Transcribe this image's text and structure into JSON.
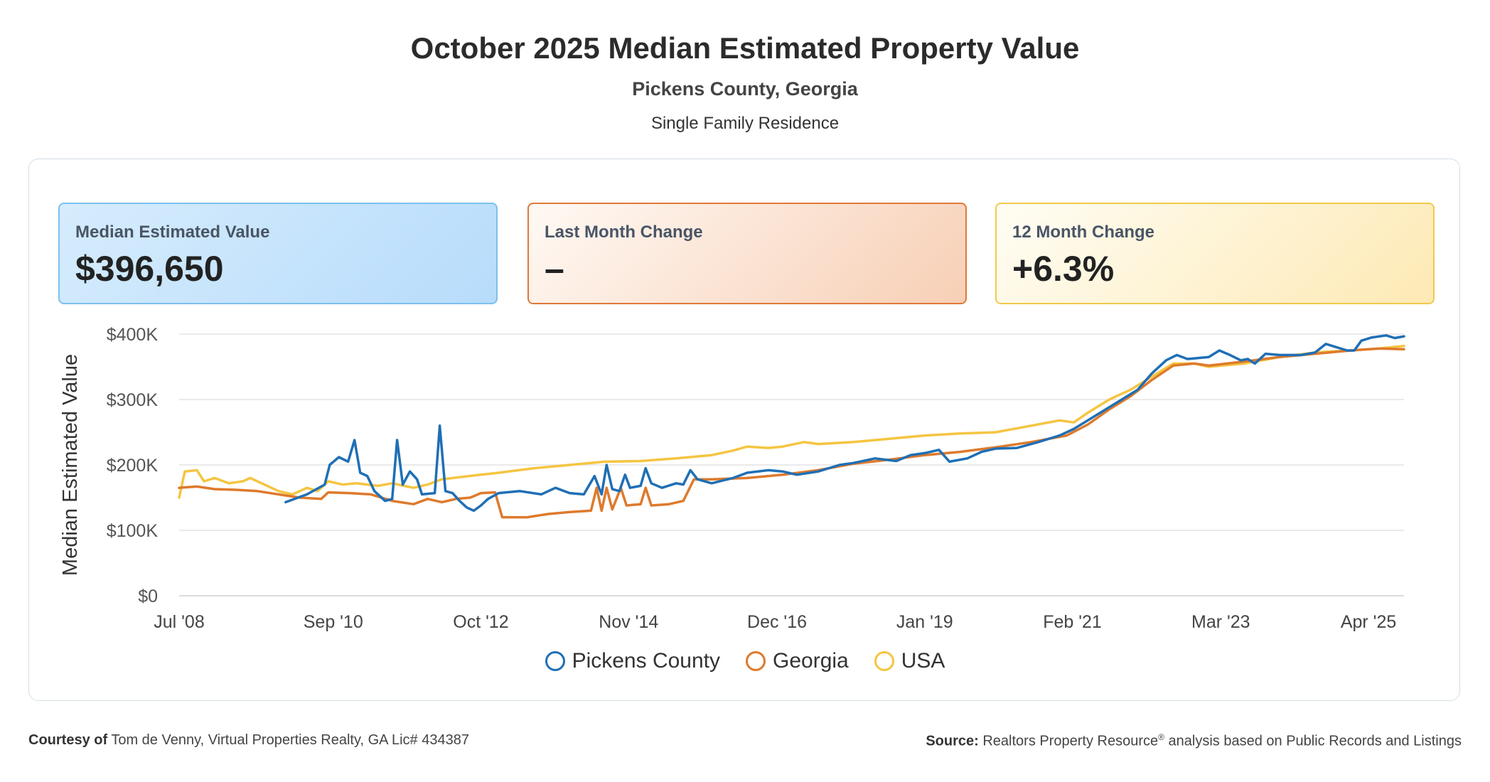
{
  "header": {
    "title": "October 2025 Median Estimated Property Value",
    "location": "Pickens County, Georgia",
    "property_type": "Single Family Residence"
  },
  "cards": {
    "median": {
      "label": "Median Estimated Value",
      "value": "$396,650"
    },
    "last_month": {
      "label": "Last Month Change",
      "value": "–"
    },
    "twelve_month": {
      "label": "12 Month Change",
      "value": "+6.3%"
    }
  },
  "footer": {
    "courtesy_label": "Courtesy of",
    "courtesy_text": "Tom de Venny, Virtual Properties Realty, GA Lic# 434387",
    "source_label": "Source:",
    "source_text_1": "Realtors Property Resource",
    "source_reg": "®",
    "source_text_2": " analysis based on Public Records and Listings"
  },
  "chart_data": {
    "type": "line",
    "ylabel": "Median Estimated Value",
    "xlabel": "",
    "ylim": [
      0,
      400000
    ],
    "yticks": [
      0,
      100000,
      200000,
      300000,
      400000
    ],
    "ytick_labels": [
      "$0",
      "$100K",
      "$200K",
      "$300K",
      "$400K"
    ],
    "xlim": [
      2008.5,
      2025.75
    ],
    "xticks": [
      2008.5,
      2010.67,
      2012.75,
      2014.83,
      2016.92,
      2019.0,
      2021.08,
      2023.17,
      2025.25
    ],
    "xtick_labels": [
      "Jul '08",
      "Sep '10",
      "Oct '12",
      "Nov '14",
      "Dec '16",
      "Jan '19",
      "Feb '21",
      "Mar '23",
      "Apr '25"
    ],
    "grid": true,
    "legend_position": "bottom-center",
    "series": [
      {
        "name": "Pickens County",
        "color": "#1f6fb5",
        "points": [
          [
            2010.0,
            143000
          ],
          [
            2010.3,
            155000
          ],
          [
            2010.55,
            170000
          ],
          [
            2010.62,
            200000
          ],
          [
            2010.75,
            212000
          ],
          [
            2010.88,
            205000
          ],
          [
            2010.97,
            238000
          ],
          [
            2011.05,
            188000
          ],
          [
            2011.15,
            183000
          ],
          [
            2011.25,
            160000
          ],
          [
            2011.4,
            145000
          ],
          [
            2011.5,
            148000
          ],
          [
            2011.57,
            238000
          ],
          [
            2011.65,
            170000
          ],
          [
            2011.75,
            190000
          ],
          [
            2011.85,
            178000
          ],
          [
            2011.92,
            155000
          ],
          [
            2012.1,
            157000
          ],
          [
            2012.17,
            260000
          ],
          [
            2012.25,
            160000
          ],
          [
            2012.35,
            157000
          ],
          [
            2012.45,
            145000
          ],
          [
            2012.55,
            135000
          ],
          [
            2012.65,
            130000
          ],
          [
            2012.75,
            138000
          ],
          [
            2012.85,
            148000
          ],
          [
            2013.0,
            157000
          ],
          [
            2013.3,
            160000
          ],
          [
            2013.6,
            155000
          ],
          [
            2013.8,
            165000
          ],
          [
            2014.0,
            157000
          ],
          [
            2014.2,
            155000
          ],
          [
            2014.35,
            183000
          ],
          [
            2014.45,
            155000
          ],
          [
            2014.52,
            200000
          ],
          [
            2014.6,
            163000
          ],
          [
            2014.7,
            160000
          ],
          [
            2014.78,
            185000
          ],
          [
            2014.85,
            165000
          ],
          [
            2015.0,
            168000
          ],
          [
            2015.07,
            195000
          ],
          [
            2015.15,
            172000
          ],
          [
            2015.3,
            165000
          ],
          [
            2015.5,
            172000
          ],
          [
            2015.6,
            170000
          ],
          [
            2015.7,
            192000
          ],
          [
            2015.8,
            178000
          ],
          [
            2016.0,
            172000
          ],
          [
            2016.3,
            180000
          ],
          [
            2016.5,
            188000
          ],
          [
            2016.8,
            192000
          ],
          [
            2017.0,
            190000
          ],
          [
            2017.2,
            185000
          ],
          [
            2017.5,
            190000
          ],
          [
            2017.8,
            200000
          ],
          [
            2018.0,
            203000
          ],
          [
            2018.3,
            210000
          ],
          [
            2018.6,
            206000
          ],
          [
            2018.8,
            215000
          ],
          [
            2019.0,
            218000
          ],
          [
            2019.2,
            223000
          ],
          [
            2019.35,
            205000
          ],
          [
            2019.6,
            210000
          ],
          [
            2019.8,
            220000
          ],
          [
            2020.0,
            225000
          ],
          [
            2020.3,
            226000
          ],
          [
            2020.6,
            235000
          ],
          [
            2020.9,
            245000
          ],
          [
            2021.1,
            255000
          ],
          [
            2021.4,
            275000
          ],
          [
            2021.7,
            295000
          ],
          [
            2022.0,
            315000
          ],
          [
            2022.2,
            340000
          ],
          [
            2022.4,
            360000
          ],
          [
            2022.55,
            368000
          ],
          [
            2022.7,
            362000
          ],
          [
            2023.0,
            365000
          ],
          [
            2023.15,
            375000
          ],
          [
            2023.3,
            368000
          ],
          [
            2023.45,
            360000
          ],
          [
            2023.55,
            362000
          ],
          [
            2023.65,
            355000
          ],
          [
            2023.8,
            370000
          ],
          [
            2024.0,
            368000
          ],
          [
            2024.3,
            368000
          ],
          [
            2024.5,
            372000
          ],
          [
            2024.65,
            385000
          ],
          [
            2024.8,
            380000
          ],
          [
            2024.95,
            375000
          ],
          [
            2025.05,
            375000
          ],
          [
            2025.15,
            390000
          ],
          [
            2025.3,
            395000
          ],
          [
            2025.5,
            398000
          ],
          [
            2025.62,
            394000
          ],
          [
            2025.75,
            396650
          ]
        ]
      },
      {
        "name": "Georgia",
        "color": "#de7a2c",
        "points": [
          [
            2008.5,
            165000
          ],
          [
            2008.75,
            167000
          ],
          [
            2009.0,
            163000
          ],
          [
            2009.3,
            162000
          ],
          [
            2009.6,
            160000
          ],
          [
            2009.9,
            155000
          ],
          [
            2010.2,
            150000
          ],
          [
            2010.5,
            148000
          ],
          [
            2010.6,
            158000
          ],
          [
            2010.9,
            157000
          ],
          [
            2011.2,
            155000
          ],
          [
            2011.5,
            145000
          ],
          [
            2011.8,
            140000
          ],
          [
            2012.0,
            148000
          ],
          [
            2012.2,
            143000
          ],
          [
            2012.4,
            148000
          ],
          [
            2012.6,
            150000
          ],
          [
            2012.75,
            157000
          ],
          [
            2012.95,
            158000
          ],
          [
            2013.05,
            120000
          ],
          [
            2013.4,
            120000
          ],
          [
            2013.7,
            125000
          ],
          [
            2014.0,
            128000
          ],
          [
            2014.3,
            130000
          ],
          [
            2014.38,
            165000
          ],
          [
            2014.45,
            130000
          ],
          [
            2014.52,
            165000
          ],
          [
            2014.6,
            132000
          ],
          [
            2014.72,
            165000
          ],
          [
            2014.8,
            138000
          ],
          [
            2015.0,
            140000
          ],
          [
            2015.07,
            165000
          ],
          [
            2015.15,
            138000
          ],
          [
            2015.4,
            140000
          ],
          [
            2015.6,
            145000
          ],
          [
            2015.75,
            178000
          ],
          [
            2016.0,
            178000
          ],
          [
            2016.5,
            180000
          ],
          [
            2017.0,
            185000
          ],
          [
            2017.5,
            192000
          ],
          [
            2018.0,
            202000
          ],
          [
            2018.5,
            208000
          ],
          [
            2019.0,
            215000
          ],
          [
            2019.5,
            220000
          ],
          [
            2020.0,
            227000
          ],
          [
            2020.5,
            235000
          ],
          [
            2021.0,
            245000
          ],
          [
            2021.3,
            262000
          ],
          [
            2021.6,
            285000
          ],
          [
            2021.9,
            305000
          ],
          [
            2022.2,
            330000
          ],
          [
            2022.5,
            352000
          ],
          [
            2022.8,
            355000
          ],
          [
            2023.0,
            352000
          ],
          [
            2023.5,
            358000
          ],
          [
            2024.0,
            365000
          ],
          [
            2024.5,
            370000
          ],
          [
            2025.0,
            375000
          ],
          [
            2025.4,
            378000
          ],
          [
            2025.75,
            377000
          ]
        ]
      },
      {
        "name": "USA",
        "color": "#f5c542",
        "points": [
          [
            2008.5,
            150000
          ],
          [
            2008.58,
            190000
          ],
          [
            2008.75,
            192000
          ],
          [
            2008.85,
            175000
          ],
          [
            2009.0,
            180000
          ],
          [
            2009.2,
            172000
          ],
          [
            2009.4,
            175000
          ],
          [
            2009.5,
            180000
          ],
          [
            2009.7,
            170000
          ],
          [
            2009.9,
            160000
          ],
          [
            2010.1,
            155000
          ],
          [
            2010.3,
            165000
          ],
          [
            2010.45,
            160000
          ],
          [
            2010.6,
            175000
          ],
          [
            2010.8,
            170000
          ],
          [
            2011.0,
            172000
          ],
          [
            2011.3,
            168000
          ],
          [
            2011.5,
            172000
          ],
          [
            2011.8,
            165000
          ],
          [
            2012.0,
            170000
          ],
          [
            2012.2,
            178000
          ],
          [
            2012.5,
            182000
          ],
          [
            2012.75,
            185000
          ],
          [
            2013.0,
            188000
          ],
          [
            2013.5,
            195000
          ],
          [
            2014.0,
            200000
          ],
          [
            2014.5,
            205000
          ],
          [
            2015.0,
            206000
          ],
          [
            2015.5,
            210000
          ],
          [
            2016.0,
            215000
          ],
          [
            2016.3,
            222000
          ],
          [
            2016.5,
            228000
          ],
          [
            2016.8,
            226000
          ],
          [
            2017.0,
            228000
          ],
          [
            2017.3,
            235000
          ],
          [
            2017.5,
            232000
          ],
          [
            2018.0,
            235000
          ],
          [
            2018.5,
            240000
          ],
          [
            2019.0,
            245000
          ],
          [
            2019.5,
            248000
          ],
          [
            2020.0,
            250000
          ],
          [
            2020.5,
            260000
          ],
          [
            2020.9,
            268000
          ],
          [
            2021.1,
            265000
          ],
          [
            2021.3,
            280000
          ],
          [
            2021.6,
            300000
          ],
          [
            2021.9,
            315000
          ],
          [
            2022.2,
            335000
          ],
          [
            2022.5,
            355000
          ],
          [
            2022.8,
            355000
          ],
          [
            2023.0,
            350000
          ],
          [
            2023.5,
            355000
          ],
          [
            2024.0,
            365000
          ],
          [
            2024.5,
            372000
          ],
          [
            2025.0,
            375000
          ],
          [
            2025.4,
            378000
          ],
          [
            2025.75,
            382000
          ]
        ]
      }
    ]
  }
}
